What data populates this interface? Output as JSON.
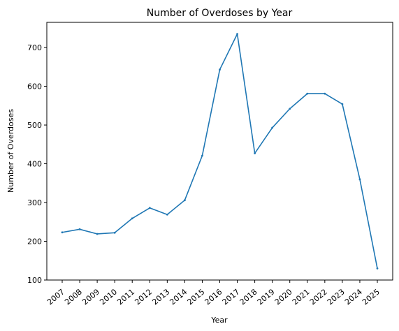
{
  "chart_data": {
    "type": "line",
    "title": "Number of Overdoses by Year",
    "xlabel": "Year",
    "ylabel": "Number of Overdoses",
    "x": [
      "2007",
      "2008",
      "2009",
      "2010",
      "2011",
      "2012",
      "2013",
      "2014",
      "2015",
      "2016",
      "2017",
      "2018",
      "2019",
      "2020",
      "2021",
      "2022",
      "2023",
      "2024",
      "2025"
    ],
    "series": [
      {
        "values": [
          223,
          231,
          219,
          222,
          259,
          286,
          269,
          306,
          421,
          643,
          735,
          427,
          493,
          542,
          581,
          581,
          554,
          360,
          130
        ]
      }
    ],
    "yticks": [
      100,
      200,
      300,
      400,
      500,
      600,
      700
    ],
    "ylim": [
      100,
      765
    ],
    "line_color": "#1f77b4",
    "grid": false,
    "legend": "none"
  }
}
